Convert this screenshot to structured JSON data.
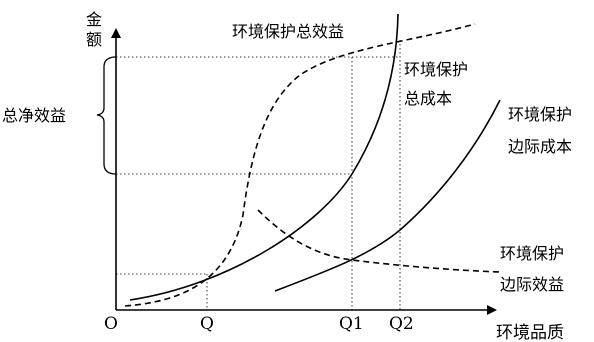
{
  "axes": {
    "y_label_top": "金",
    "y_label_bottom": "额",
    "x_label": "环境品质",
    "origin": "O"
  },
  "x_ticks": {
    "q": "Q",
    "q1": "Q1",
    "q2": "Q2"
  },
  "curves": {
    "total_benefit": "环境保护总效益",
    "total_cost": [
      "环境保护",
      "总成本"
    ],
    "marginal_cost": [
      "环境保护",
      "边际成本"
    ],
    "marginal_benefit": [
      "环境保护",
      "边际效益"
    ]
  },
  "bracket_label": "总净效益"
}
